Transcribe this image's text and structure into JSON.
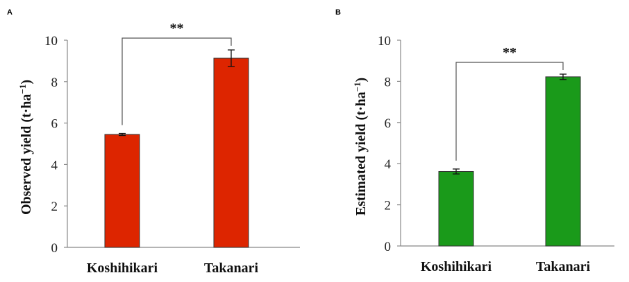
{
  "chart_data": [
    {
      "type": "bar",
      "panel": "A",
      "categories": [
        "Koshihikari",
        "Takanari"
      ],
      "values": [
        5.45,
        9.13
      ],
      "errors": [
        0.05,
        0.4
      ],
      "ylabel": "Observed yield (t·ha⁻¹)",
      "ylabel_parts": {
        "base": "Observed yield (t·ha",
        "exp": "−1",
        "close": ")"
      },
      "ylim": [
        0,
        10
      ],
      "yticks": [
        "0",
        "2",
        "4",
        "6",
        "8",
        "10"
      ],
      "significance": "**",
      "bar_color": "#dd2500",
      "grid": false
    },
    {
      "type": "bar",
      "panel": "B",
      "categories": [
        "Koshihikari",
        "Takanari"
      ],
      "values": [
        3.62,
        8.22
      ],
      "errors": [
        0.12,
        0.13
      ],
      "ylabel": "Estimated yield (t·ha⁻¹)",
      "ylabel_parts": {
        "base": "Estimated yield (t·ha",
        "exp": "−1",
        "close": ")"
      },
      "ylim": [
        0,
        10
      ],
      "yticks": [
        "0",
        "2",
        "4",
        "6",
        "8",
        "10"
      ],
      "significance": "**",
      "bar_color": "#1a9a1a",
      "grid": false
    }
  ]
}
